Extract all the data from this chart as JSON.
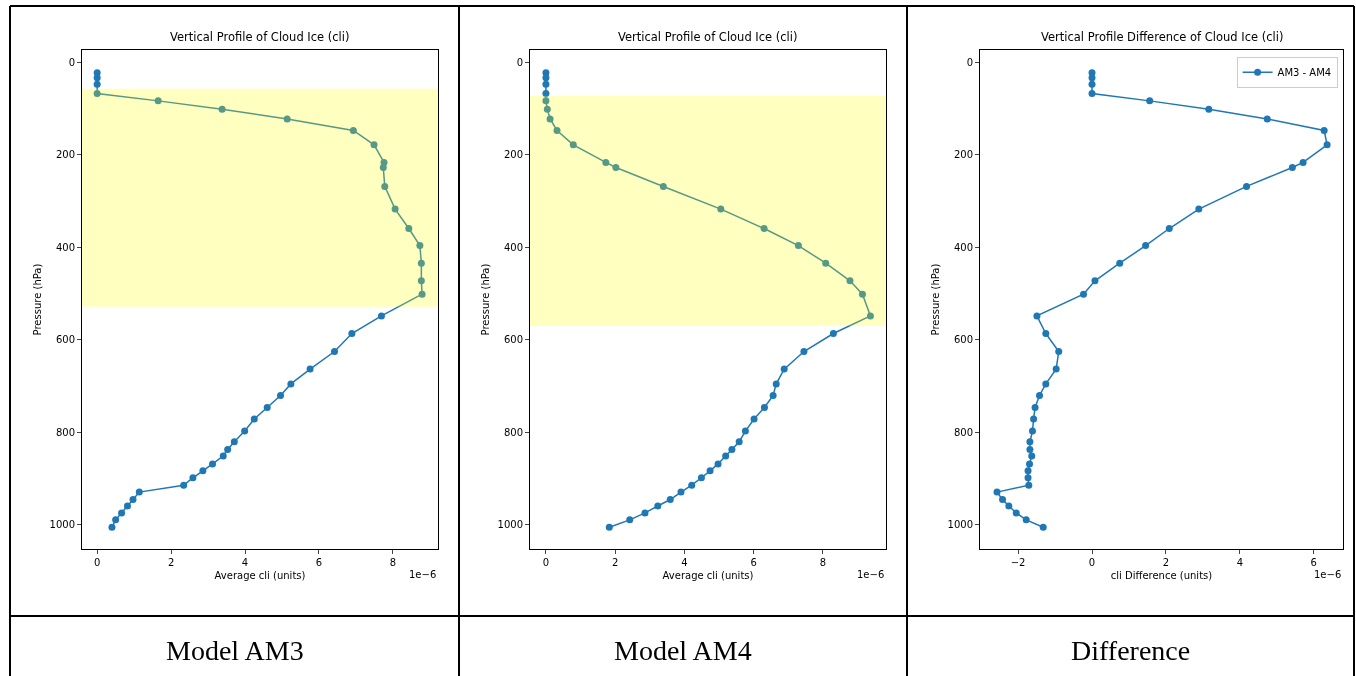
{
  "chart_data": [
    {
      "type": "line",
      "orientation": "horizontal",
      "title": "Vertical Profile of Cloud Ice (cli)",
      "xlabel": "Average cli (units)",
      "ylabel": "Pressure (hPa)",
      "annotations": [
        "1e−6",
        "Model AM3"
      ],
      "x": [
        23,
        34,
        48,
        68,
        84,
        102,
        123,
        148,
        179,
        217,
        228,
        269,
        318,
        360,
        397,
        435,
        473,
        502,
        549,
        587,
        626,
        664,
        696,
        721,
        747,
        772,
        798,
        821,
        838,
        852,
        869,
        884,
        899,
        915,
        930,
        946,
        960,
        975,
        990,
        1006
      ],
      "series": [
        {
          "color": "#1f77b4",
          "values": [
            0,
            0,
            0,
            0,
            1.65,
            3.38,
            5.14,
            6.93,
            7.49,
            7.76,
            7.74,
            7.78,
            8.06,
            8.43,
            8.73,
            8.77,
            8.77,
            8.79,
            7.69,
            6.89,
            6.42,
            5.76,
            5.24,
            4.96,
            4.6,
            4.25,
            3.99,
            3.71,
            3.53,
            3.41,
            3.12,
            2.86,
            2.59,
            2.34,
            1.14,
            0.97,
            0.82,
            0.66,
            0.5,
            0.4
          ]
        }
      ],
      "bands": [
        {
          "axis": "y",
          "from": 58,
          "to": 529,
          "color": "#ffff00"
        }
      ],
      "xlim": [
        -0.41,
        9.22
      ],
      "xticks": [
        0,
        2,
        4,
        6,
        8
      ],
      "ylim": [
        1053,
        -26
      ],
      "yticks": [
        0,
        200,
        400,
        600,
        800,
        1000
      ],
      "marker": "circle",
      "line_style": "solid"
    },
    {
      "type": "line",
      "orientation": "horizontal",
      "title": "Vertical Profile of Cloud Ice (cli)",
      "xlabel": "Average cli (units)",
      "ylabel": "Pressure (hPa)",
      "annotations": [
        "1e−6",
        "Model AM4"
      ],
      "x": [
        23,
        34,
        48,
        68,
        84,
        102,
        123,
        148,
        179,
        217,
        228,
        269,
        318,
        360,
        397,
        435,
        473,
        502,
        549,
        587,
        626,
        664,
        696,
        721,
        747,
        772,
        798,
        821,
        838,
        852,
        869,
        884,
        899,
        915,
        930,
        946,
        960,
        975,
        990,
        1006
      ],
      "series": [
        {
          "color": "#1f77b4",
          "values": [
            0,
            0,
            0,
            0,
            0,
            0.04,
            0.12,
            0.32,
            0.79,
            1.73,
            2.02,
            3.39,
            5.05,
            6.3,
            7.29,
            8.08,
            8.78,
            9.14,
            9.37,
            8.3,
            7.45,
            6.88,
            6.65,
            6.56,
            6.31,
            6.01,
            5.76,
            5.58,
            5.37,
            5.19,
            4.97,
            4.74,
            4.49,
            4.21,
            3.9,
            3.59,
            3.23,
            2.86,
            2.42,
            1.83
          ]
        }
      ],
      "bands": [
        {
          "axis": "y",
          "from": 73,
          "to": 571,
          "color": "#ffff00"
        }
      ],
      "xlim": [
        -0.46,
        9.82
      ],
      "xticks": [
        0,
        2,
        4,
        6,
        8
      ],
      "ylim": [
        1053,
        -26
      ],
      "yticks": [
        0,
        200,
        400,
        600,
        800,
        1000
      ],
      "marker": "circle",
      "line_style": "solid"
    },
    {
      "type": "line",
      "orientation": "horizontal",
      "title": "Vertical Profile Difference of Cloud Ice (cli)",
      "xlabel": "cli Difference (units)",
      "ylabel": "Pressure (hPa)",
      "annotations": [
        "1e−6",
        "Difference"
      ],
      "x": [
        23,
        34,
        48,
        68,
        84,
        102,
        123,
        148,
        179,
        217,
        228,
        269,
        318,
        360,
        397,
        435,
        473,
        502,
        549,
        587,
        626,
        664,
        696,
        721,
        747,
        772,
        798,
        821,
        838,
        852,
        869,
        884,
        899,
        915,
        930,
        946,
        960,
        975,
        990,
        1006
      ],
      "series": [
        {
          "name": "AM3 - AM4",
          "color": "#1f77b4",
          "values": [
            0,
            0,
            0,
            0,
            1.56,
            3.16,
            4.74,
            6.28,
            6.36,
            5.71,
            5.42,
            4.18,
            2.89,
            2.09,
            1.45,
            0.75,
            0.08,
            -0.23,
            -1.49,
            -1.25,
            -0.9,
            -0.97,
            -1.25,
            -1.42,
            -1.54,
            -1.58,
            -1.61,
            -1.68,
            -1.68,
            -1.63,
            -1.69,
            -1.73,
            -1.73,
            -1.71,
            -2.57,
            -2.42,
            -2.25,
            -2.05,
            -1.78,
            -1.32
          ]
        }
      ],
      "xlim": [
        -3.03,
        6.79
      ],
      "xticks": [
        {
          "value": -2,
          "label": "−2"
        },
        0,
        2,
        4,
        6
      ],
      "ylim": [
        1053,
        -26
      ],
      "yticks": [
        0,
        200,
        400,
        600,
        800,
        1000
      ],
      "marker": "circle",
      "line_style": "solid",
      "legend": "top right"
    }
  ]
}
